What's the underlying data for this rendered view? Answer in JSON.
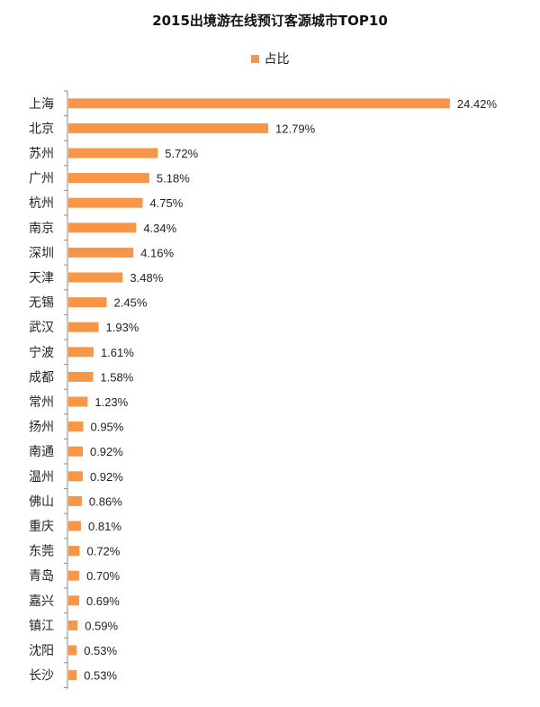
{
  "chart_data": {
    "type": "bar",
    "orientation": "horizontal",
    "title": "2015出境游在线预订客源城市TOP10",
    "legend": {
      "position": "top-center",
      "entries": [
        "占比"
      ]
    },
    "categories": [
      "上海",
      "北京",
      "苏州",
      "广州",
      "杭州",
      "南京",
      "深圳",
      "天津",
      "无锡",
      "武汉",
      "宁波",
      "成都",
      "常州",
      "扬州",
      "南通",
      "温州",
      "佛山",
      "重庆",
      "东莞",
      "青岛",
      "嘉兴",
      "镇江",
      "沈阳",
      "长沙"
    ],
    "series": [
      {
        "name": "占比",
        "values": [
          24.42,
          12.79,
          5.72,
          5.18,
          4.75,
          4.34,
          4.16,
          3.48,
          2.45,
          1.93,
          1.61,
          1.58,
          1.23,
          0.95,
          0.92,
          0.92,
          0.86,
          0.81,
          0.72,
          0.7,
          0.69,
          0.59,
          0.53,
          0.53
        ],
        "labels": [
          "24.42%",
          "12.79%",
          "5.72%",
          "5.18%",
          "4.75%",
          "4.34%",
          "4.16%",
          "3.48%",
          "2.45%",
          "1.93%",
          "1.61%",
          "1.58%",
          "1.23%",
          "0.95%",
          "0.92%",
          "0.92%",
          "0.86%",
          "0.81%",
          "0.72%",
          "0.70%",
          "0.69%",
          "0.59%",
          "0.53%",
          "0.53%"
        ],
        "color": "#F79646"
      }
    ],
    "xlim": [
      0,
      25
    ],
    "grid": false
  }
}
